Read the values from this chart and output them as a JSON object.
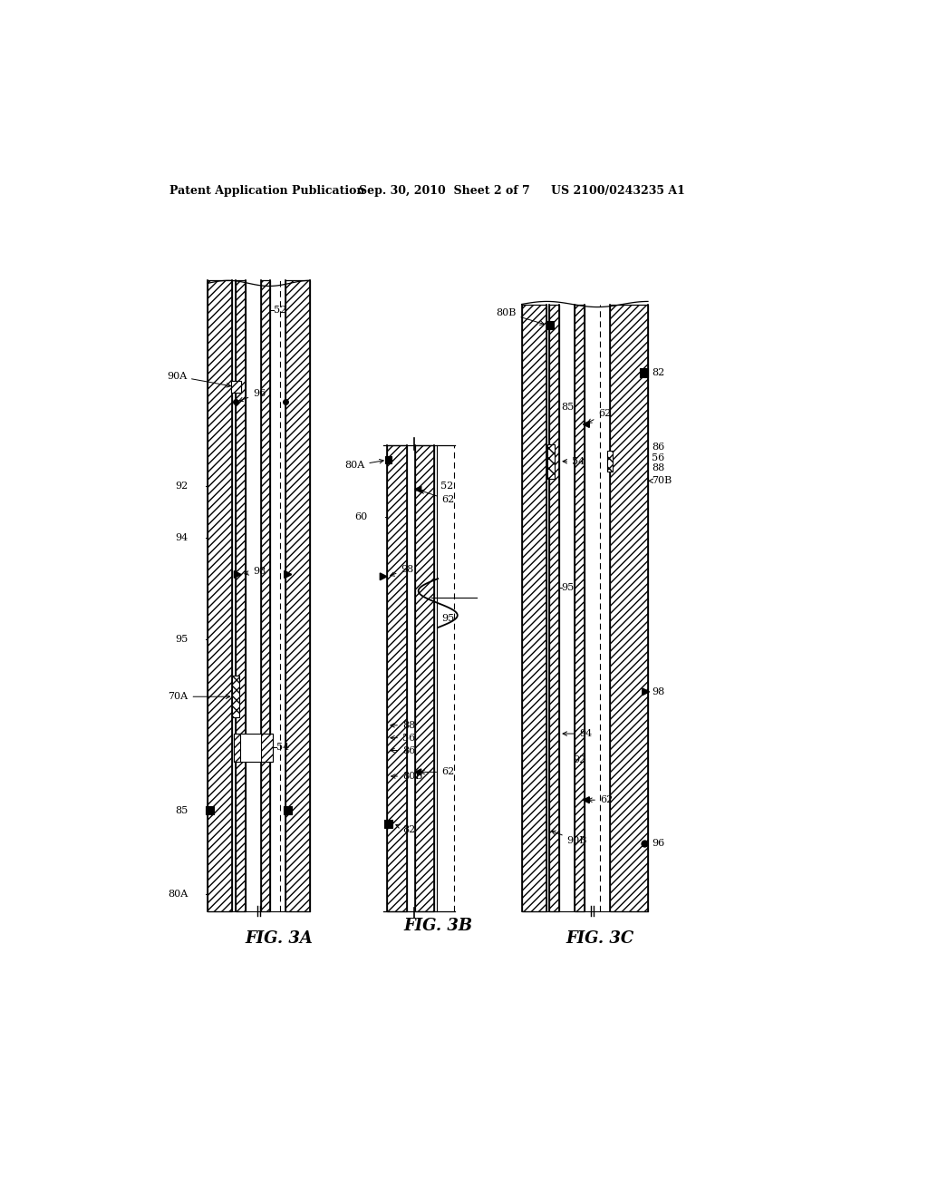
{
  "title_left": "Patent Application Publication",
  "title_center": "Sep. 30, 2010  Sheet 2 of 7",
  "title_right": "US 2100/0243235 A1",
  "fig3a_label": "FIG. 3A",
  "fig3b_label": "FIG. 3B",
  "fig3c_label": "FIG. 3C",
  "bg_color": "#ffffff"
}
